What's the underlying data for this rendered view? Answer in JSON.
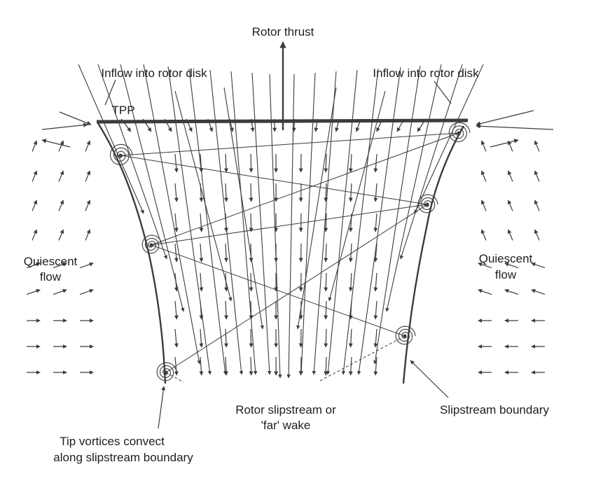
{
  "title": "Rotor thrust",
  "labels": {
    "inflow_left": "Inflow into rotor disk",
    "inflow_right": "Inflow into rotor disk",
    "tpp": "TPP",
    "quiescent_left_1": "Quiescent",
    "quiescent_left_2": "flow",
    "quiescent_right_1": "Quiescent",
    "quiescent_right_2": "flow",
    "slipstream_1": "Rotor slipstream or",
    "slipstream_2": "'far' wake",
    "boundary": "Slipstream boundary",
    "tip_vortices_1": "Tip vortices convect",
    "tip_vortices_2": "along slipstream boundary"
  },
  "icons": {
    "vortex": "spiral-vortex-icon",
    "arrow": "flow-arrow-icon"
  },
  "colors": {
    "ink": "#3c3c3c",
    "text": "#1e1e1e",
    "background": "#ffffff"
  }
}
